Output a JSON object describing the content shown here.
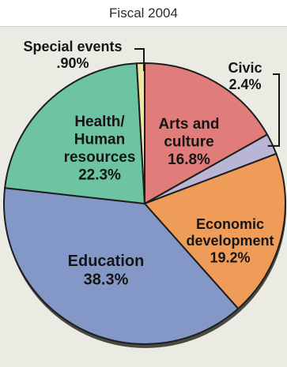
{
  "chart_data": {
    "type": "pie",
    "subtitle": "Fiscal 2004",
    "categories": [
      "Arts and culture",
      "Civic",
      "Economic development",
      "Education",
      "Health/ Human resources",
      "Special events"
    ],
    "values": [
      16.8,
      2.4,
      19.2,
      38.3,
      22.3,
      0.9
    ],
    "value_labels": [
      "16.8%",
      "2.4%",
      "19.2%",
      "38.3%",
      "22.3%",
      ".90%"
    ],
    "colors": [
      "#e07d7b",
      "#b8b6d4",
      "#ee9c58",
      "#8498c8",
      "#6cc4a3",
      "#f2e5a2"
    ],
    "label_lines": {
      "Arts and culture": [
        "Arts and",
        "culture"
      ],
      "Civic": [
        "Civic"
      ],
      "Economic development": [
        "Economic",
        "development"
      ],
      "Education": [
        "Education"
      ],
      "Health/ Human resources": [
        "Health/",
        "Human",
        "resources"
      ],
      "Special events": [
        "Special events"
      ]
    }
  }
}
